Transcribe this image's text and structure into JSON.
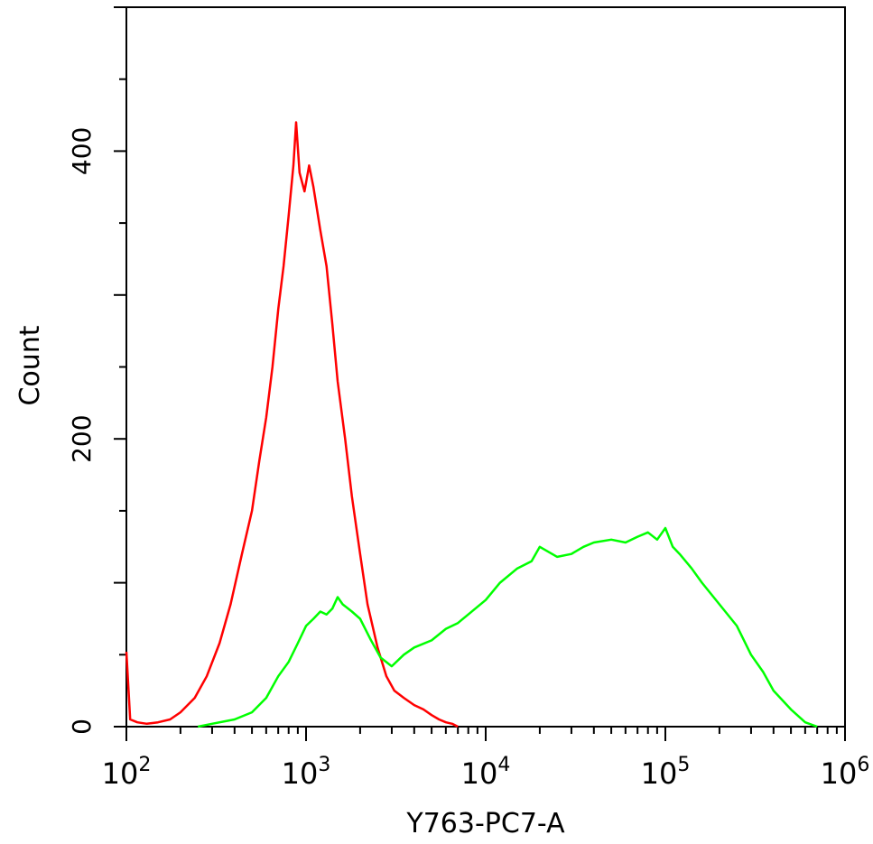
{
  "chart_data": {
    "type": "line",
    "title": "",
    "xlabel": "Y763-PC7-A",
    "ylabel": "Count",
    "x_scale": "log",
    "xlim": [
      100,
      1000000
    ],
    "ylim": [
      0,
      500
    ],
    "grid": false,
    "legend": "none",
    "x_ticks": [
      {
        "value": 100,
        "base": "10",
        "exp": "2"
      },
      {
        "value": 1000,
        "base": "10",
        "exp": "3"
      },
      {
        "value": 10000,
        "base": "10",
        "exp": "4"
      },
      {
        "value": 100000,
        "base": "10",
        "exp": "5"
      },
      {
        "value": 1000000,
        "base": "10",
        "exp": "6"
      }
    ],
    "y_ticks": [
      {
        "value": 0,
        "label": "0"
      },
      {
        "value": 200,
        "label": "200"
      },
      {
        "value": 400,
        "label": "400"
      }
    ],
    "series": [
      {
        "color": "#ff0000",
        "x": [
          100,
          105,
          115,
          130,
          150,
          175,
          200,
          240,
          280,
          330,
          380,
          440,
          500,
          550,
          600,
          650,
          700,
          750,
          800,
          850,
          880,
          920,
          980,
          1040,
          1100,
          1200,
          1300,
          1400,
          1500,
          1650,
          1800,
          2000,
          2200,
          2500,
          2800,
          3100,
          3500,
          4000,
          4500,
          5000,
          5500,
          6000,
          6500,
          7000
        ],
        "y": [
          52,
          5,
          3,
          2,
          3,
          5,
          10,
          20,
          35,
          58,
          85,
          120,
          150,
          185,
          215,
          250,
          290,
          320,
          355,
          390,
          420,
          385,
          372,
          390,
          375,
          345,
          320,
          280,
          240,
          200,
          160,
          120,
          85,
          55,
          35,
          25,
          20,
          15,
          12,
          8,
          5,
          3,
          2,
          0
        ]
      },
      {
        "color": "#00ff00",
        "x": [
          250,
          300,
          400,
          500,
          600,
          700,
          800,
          900,
          1000,
          1100,
          1200,
          1300,
          1400,
          1500,
          1600,
          1800,
          2000,
          2300,
          2600,
          3000,
          3500,
          4000,
          5000,
          6000,
          7000,
          8000,
          10000,
          12000,
          15000,
          18000,
          20000,
          25000,
          30000,
          35000,
          40000,
          50000,
          60000,
          70000,
          80000,
          90000,
          100000,
          110000,
          120000,
          140000,
          160000,
          200000,
          250000,
          300000,
          350000,
          400000,
          500000,
          600000,
          700000
        ],
        "y": [
          0,
          2,
          5,
          10,
          20,
          35,
          45,
          58,
          70,
          75,
          80,
          78,
          82,
          90,
          85,
          80,
          75,
          60,
          48,
          42,
          50,
          55,
          60,
          68,
          72,
          78,
          88,
          100,
          110,
          115,
          125,
          118,
          120,
          125,
          128,
          130,
          128,
          132,
          135,
          130,
          138,
          125,
          120,
          110,
          100,
          85,
          70,
          50,
          38,
          25,
          12,
          3,
          0
        ]
      }
    ]
  }
}
